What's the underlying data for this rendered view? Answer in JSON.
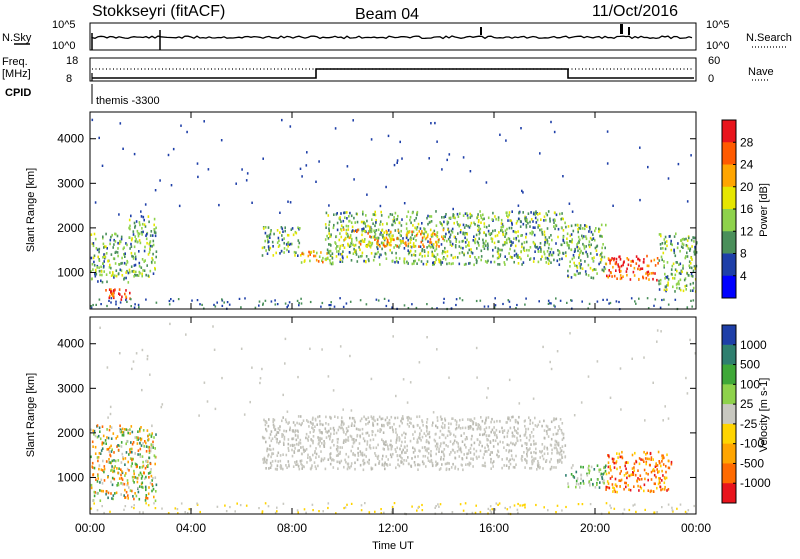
{
  "header": {
    "station": "Stokkseyri (fitACF)",
    "beam": "Beam 04",
    "date": "11/Oct/2016"
  },
  "top_panels": {
    "nsky_label": "N.Sky",
    "nsky_top": "10^5",
    "nsky_bottom": "10^0",
    "nsearch_label": "N.Search",
    "nsearch_top": "10^5",
    "nsearch_bottom": "10^0",
    "freq_label": "Freq.",
    "freq_unit": "[MHz]",
    "freq_top": "18",
    "freq_bottom": "8",
    "nave_label": "Nave",
    "nave_top": "60",
    "nave_bottom": "0",
    "cpid_label": "CPID",
    "cpid_value": "themis -3300"
  },
  "chart_data": [
    {
      "type": "heatmap",
      "title": "",
      "ylabel": "Slant Range [km]",
      "xlabel": "",
      "x_range_hours": [
        0,
        24
      ],
      "ylim": [
        180,
        4600
      ],
      "yticks": [
        1000,
        2000,
        3000,
        4000
      ],
      "colorbar_label": "Power [dB]",
      "colorbar_ticks": [
        "28",
        "24",
        "20",
        "16",
        "12",
        "8",
        "4"
      ],
      "colorbar_colors": [
        "#e8141c",
        "#ff5a00",
        "#ffa500",
        "#e6e600",
        "#8ed24b",
        "#4a8f5a",
        "#1e3fa8",
        "#0000ff"
      ],
      "regions": [
        {
          "t0": 0.0,
          "t1": 1.5,
          "r0": 800,
          "r1": 1900,
          "level": "green"
        },
        {
          "t0": 0.6,
          "t1": 1.6,
          "r0": 420,
          "r1": 650,
          "level": "red"
        },
        {
          "t0": 1.5,
          "t1": 2.6,
          "r0": 900,
          "r1": 2300,
          "level": "green"
        },
        {
          "t0": 6.8,
          "t1": 8.3,
          "r0": 1400,
          "r1": 2050,
          "level": "green"
        },
        {
          "t0": 8.3,
          "t1": 9.4,
          "r0": 1250,
          "r1": 1500,
          "level": "orange"
        },
        {
          "t0": 9.3,
          "t1": 18.8,
          "r0": 1200,
          "r1": 2400,
          "level": "green"
        },
        {
          "t0": 10.0,
          "t1": 14.0,
          "r0": 1600,
          "r1": 2000,
          "level": "orange"
        },
        {
          "t0": 18.8,
          "t1": 20.4,
          "r0": 900,
          "r1": 2100,
          "level": "green"
        },
        {
          "t0": 20.4,
          "t1": 22.5,
          "r0": 850,
          "r1": 1400,
          "level": "red"
        },
        {
          "t0": 22.5,
          "t1": 24.0,
          "r0": 600,
          "r1": 1900,
          "level": "green"
        }
      ]
    },
    {
      "type": "heatmap",
      "title": "",
      "ylabel": "Slant Range [km]",
      "xlabel": "Time UT",
      "x_range_hours": [
        0,
        24
      ],
      "ylim": [
        180,
        4600
      ],
      "yticks": [
        1000,
        2000,
        3000,
        4000
      ],
      "xtick_labels": [
        "00:00",
        "04:00",
        "08:00",
        "12:00",
        "16:00",
        "20:00",
        "00:00"
      ],
      "colorbar_label": "Velocity [m s-1]",
      "colorbar_ticks": [
        "1000",
        "500",
        "100",
        "25",
        "-25",
        "-100",
        "-500",
        "-1000"
      ],
      "colorbar_colors": [
        "#1e3fa8",
        "#2f7f6f",
        "#3fa838",
        "#8ed24b",
        "#c8c8c0",
        "#ffd400",
        "#ffa500",
        "#ff6a00",
        "#e8141c"
      ],
      "regions": [
        {
          "t0": 0.0,
          "t1": 2.6,
          "r0": 500,
          "r1": 2200,
          "level": "mixed"
        },
        {
          "t0": 6.8,
          "t1": 18.8,
          "r0": 1200,
          "r1": 2400,
          "level": "grey"
        },
        {
          "t0": 18.8,
          "t1": 20.4,
          "r0": 800,
          "r1": 1300,
          "level": "green"
        },
        {
          "t0": 20.4,
          "t1": 23.0,
          "r0": 700,
          "r1": 1600,
          "level": "orange"
        }
      ]
    }
  ]
}
